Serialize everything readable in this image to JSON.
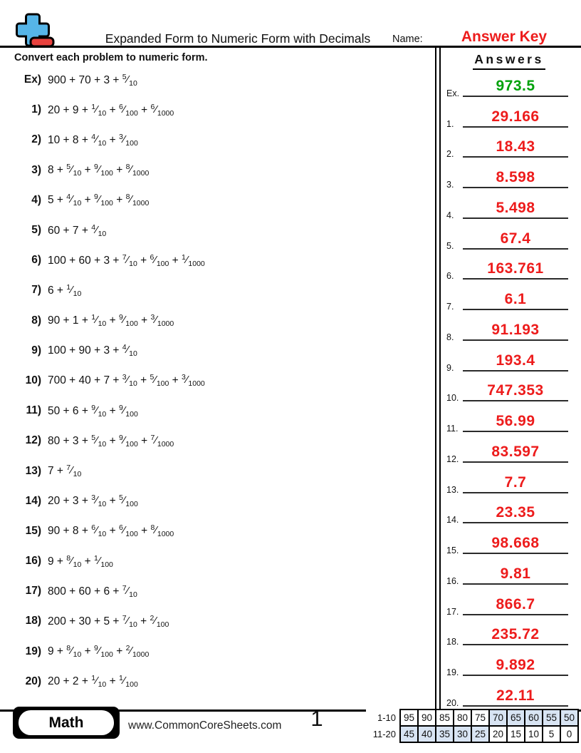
{
  "header": {
    "title": "Expanded Form to Numeric Form with Decimals",
    "name_label": "Name:",
    "name_value": "Answer Key"
  },
  "instructions": "Convert each problem to numeric form.",
  "answers_heading": "Answers",
  "problems": [
    {
      "label": "Ex)",
      "terms": [
        {
          "num": "900"
        },
        {
          "num": "70"
        },
        {
          "num": "3"
        },
        {
          "frac": [
            "5",
            "10"
          ]
        }
      ]
    },
    {
      "label": "1)",
      "terms": [
        {
          "num": "20"
        },
        {
          "num": "9"
        },
        {
          "frac": [
            "1",
            "10"
          ]
        },
        {
          "frac": [
            "6",
            "100"
          ]
        },
        {
          "frac": [
            "6",
            "1000"
          ]
        }
      ]
    },
    {
      "label": "2)",
      "terms": [
        {
          "num": "10"
        },
        {
          "num": "8"
        },
        {
          "frac": [
            "4",
            "10"
          ]
        },
        {
          "frac": [
            "3",
            "100"
          ]
        }
      ]
    },
    {
      "label": "3)",
      "terms": [
        {
          "num": "8"
        },
        {
          "frac": [
            "5",
            "10"
          ]
        },
        {
          "frac": [
            "9",
            "100"
          ]
        },
        {
          "frac": [
            "8",
            "1000"
          ]
        }
      ]
    },
    {
      "label": "4)",
      "terms": [
        {
          "num": "5"
        },
        {
          "frac": [
            "4",
            "10"
          ]
        },
        {
          "frac": [
            "9",
            "100"
          ]
        },
        {
          "frac": [
            "8",
            "1000"
          ]
        }
      ]
    },
    {
      "label": "5)",
      "terms": [
        {
          "num": "60"
        },
        {
          "num": "7"
        },
        {
          "frac": [
            "4",
            "10"
          ]
        }
      ]
    },
    {
      "label": "6)",
      "terms": [
        {
          "num": "100"
        },
        {
          "num": "60"
        },
        {
          "num": "3"
        },
        {
          "frac": [
            "7",
            "10"
          ]
        },
        {
          "frac": [
            "6",
            "100"
          ]
        },
        {
          "frac": [
            "1",
            "1000"
          ]
        }
      ]
    },
    {
      "label": "7)",
      "terms": [
        {
          "num": "6"
        },
        {
          "frac": [
            "1",
            "10"
          ]
        }
      ]
    },
    {
      "label": "8)",
      "terms": [
        {
          "num": "90"
        },
        {
          "num": "1"
        },
        {
          "frac": [
            "1",
            "10"
          ]
        },
        {
          "frac": [
            "9",
            "100"
          ]
        },
        {
          "frac": [
            "3",
            "1000"
          ]
        }
      ]
    },
    {
      "label": "9)",
      "terms": [
        {
          "num": "100"
        },
        {
          "num": "90"
        },
        {
          "num": "3"
        },
        {
          "frac": [
            "4",
            "10"
          ]
        }
      ]
    },
    {
      "label": "10)",
      "terms": [
        {
          "num": "700"
        },
        {
          "num": "40"
        },
        {
          "num": "7"
        },
        {
          "frac": [
            "3",
            "10"
          ]
        },
        {
          "frac": [
            "5",
            "100"
          ]
        },
        {
          "frac": [
            "3",
            "1000"
          ]
        }
      ]
    },
    {
      "label": "11)",
      "terms": [
        {
          "num": "50"
        },
        {
          "num": "6"
        },
        {
          "frac": [
            "9",
            "10"
          ]
        },
        {
          "frac": [
            "9",
            "100"
          ]
        }
      ]
    },
    {
      "label": "12)",
      "terms": [
        {
          "num": "80"
        },
        {
          "num": "3"
        },
        {
          "frac": [
            "5",
            "10"
          ]
        },
        {
          "frac": [
            "9",
            "100"
          ]
        },
        {
          "frac": [
            "7",
            "1000"
          ]
        }
      ]
    },
    {
      "label": "13)",
      "terms": [
        {
          "num": "7"
        },
        {
          "frac": [
            "7",
            "10"
          ]
        }
      ]
    },
    {
      "label": "14)",
      "terms": [
        {
          "num": "20"
        },
        {
          "num": "3"
        },
        {
          "frac": [
            "3",
            "10"
          ]
        },
        {
          "frac": [
            "5",
            "100"
          ]
        }
      ]
    },
    {
      "label": "15)",
      "terms": [
        {
          "num": "90"
        },
        {
          "num": "8"
        },
        {
          "frac": [
            "6",
            "10"
          ]
        },
        {
          "frac": [
            "6",
            "100"
          ]
        },
        {
          "frac": [
            "8",
            "1000"
          ]
        }
      ]
    },
    {
      "label": "16)",
      "terms": [
        {
          "num": "9"
        },
        {
          "frac": [
            "8",
            "10"
          ]
        },
        {
          "frac": [
            "1",
            "100"
          ]
        }
      ]
    },
    {
      "label": "17)",
      "terms": [
        {
          "num": "800"
        },
        {
          "num": "60"
        },
        {
          "num": "6"
        },
        {
          "frac": [
            "7",
            "10"
          ]
        }
      ]
    },
    {
      "label": "18)",
      "terms": [
        {
          "num": "200"
        },
        {
          "num": "30"
        },
        {
          "num": "5"
        },
        {
          "frac": [
            "7",
            "10"
          ]
        },
        {
          "frac": [
            "2",
            "100"
          ]
        }
      ]
    },
    {
      "label": "19)",
      "terms": [
        {
          "num": "9"
        },
        {
          "frac": [
            "8",
            "10"
          ]
        },
        {
          "frac": [
            "9",
            "100"
          ]
        },
        {
          "frac": [
            "2",
            "1000"
          ]
        }
      ]
    },
    {
      "label": "20)",
      "terms": [
        {
          "num": "20"
        },
        {
          "num": "2"
        },
        {
          "frac": [
            "1",
            "10"
          ]
        },
        {
          "frac": [
            "1",
            "100"
          ]
        }
      ]
    }
  ],
  "answers": [
    {
      "label": "Ex.",
      "value": "973.5",
      "example": true
    },
    {
      "label": "1.",
      "value": "29.166"
    },
    {
      "label": "2.",
      "value": "18.43"
    },
    {
      "label": "3.",
      "value": "8.598"
    },
    {
      "label": "4.",
      "value": "5.498"
    },
    {
      "label": "5.",
      "value": "67.4"
    },
    {
      "label": "6.",
      "value": "163.761"
    },
    {
      "label": "7.",
      "value": "6.1"
    },
    {
      "label": "8.",
      "value": "91.193"
    },
    {
      "label": "9.",
      "value": "193.4"
    },
    {
      "label": "10.",
      "value": "747.353"
    },
    {
      "label": "11.",
      "value": "56.99"
    },
    {
      "label": "12.",
      "value": "83.597"
    },
    {
      "label": "13.",
      "value": "7.7"
    },
    {
      "label": "14.",
      "value": "23.35"
    },
    {
      "label": "15.",
      "value": "98.668"
    },
    {
      "label": "16.",
      "value": "9.81"
    },
    {
      "label": "17.",
      "value": "866.7"
    },
    {
      "label": "18.",
      "value": "235.72"
    },
    {
      "label": "19.",
      "value": "9.892"
    },
    {
      "label": "20.",
      "value": "22.11"
    }
  ],
  "footer": {
    "subject": "Math",
    "website": "www.CommonCoreSheets.com",
    "page_number": "1",
    "score_table": {
      "rows": [
        {
          "label": "1-10",
          "cells": [
            {
              "v": "95"
            },
            {
              "v": "90"
            },
            {
              "v": "85"
            },
            {
              "v": "80"
            },
            {
              "v": "75"
            },
            {
              "v": "70",
              "shaded": true
            },
            {
              "v": "65",
              "shaded": true
            },
            {
              "v": "60",
              "shaded": true
            },
            {
              "v": "55",
              "shaded": true
            },
            {
              "v": "50",
              "shaded": true
            }
          ]
        },
        {
          "label": "11-20",
          "cells": [
            {
              "v": "45",
              "shaded": true
            },
            {
              "v": "40",
              "shaded": true
            },
            {
              "v": "35",
              "shaded": true
            },
            {
              "v": "30",
              "shaded": true
            },
            {
              "v": "25",
              "shaded": true
            },
            {
              "v": "20"
            },
            {
              "v": "15"
            },
            {
              "v": "10"
            },
            {
              "v": "5"
            },
            {
              "v": "0"
            }
          ]
        }
      ]
    }
  },
  "colors": {
    "answer_red": "#ed1c1c",
    "example_green": "#00a20b",
    "score_shade_blue": "#d8e4f3",
    "logo_blue": "#56b5e8",
    "logo_red": "#e8423e"
  }
}
